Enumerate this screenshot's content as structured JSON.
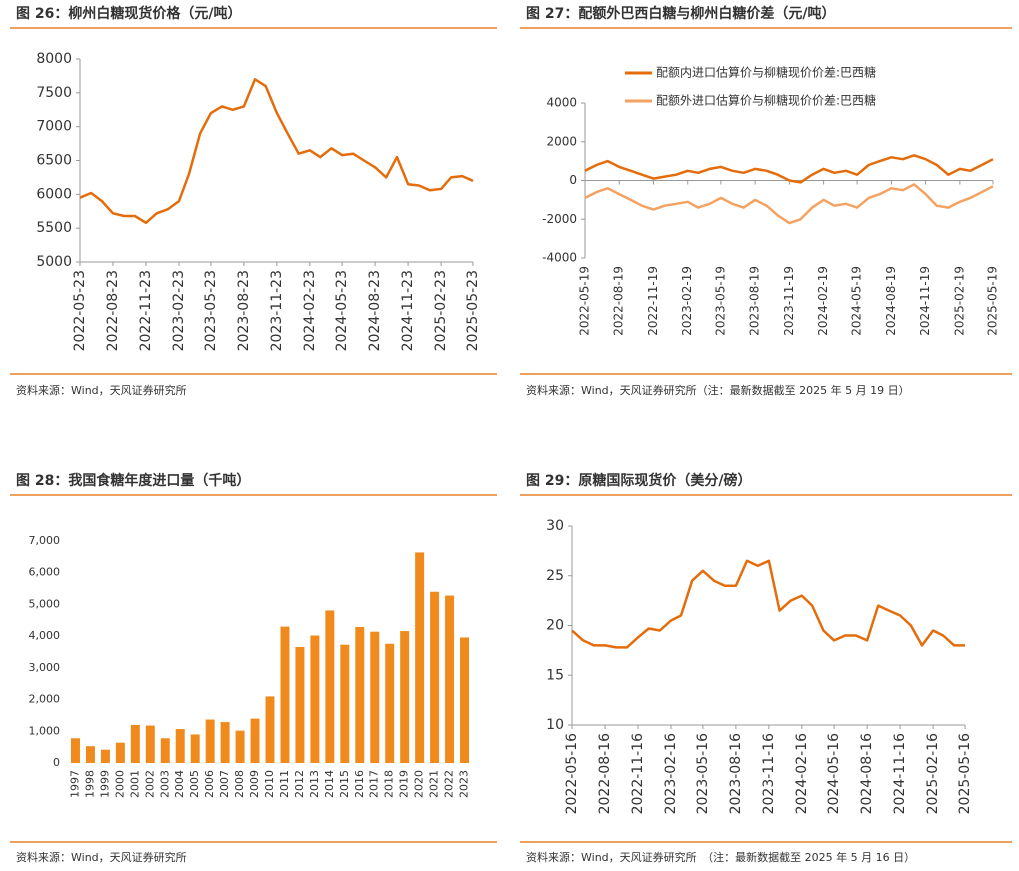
{
  "chart_data": [
    {
      "type": "line",
      "title": "图 26：柳州白糖现货价格（元/吨）",
      "note": "资料来源：Wind，天风证券研究所",
      "color": "#e46c0a",
      "x": [
        "2022-05-23",
        "2022-06-23",
        "2022-07-23",
        "2022-08-23",
        "2022-09-23",
        "2022-10-23",
        "2022-11-23",
        "2022-12-23",
        "2023-01-23",
        "2023-02-23",
        "2023-03-23",
        "2023-04-23",
        "2023-05-23",
        "2023-06-23",
        "2023-07-23",
        "2023-08-23",
        "2023-09-23",
        "2023-10-23",
        "2023-11-23",
        "2023-12-23",
        "2024-01-23",
        "2024-02-23",
        "2024-03-23",
        "2024-04-23",
        "2024-05-23",
        "2024-06-23",
        "2024-07-23",
        "2024-08-23",
        "2024-09-23",
        "2024-10-23",
        "2024-11-23",
        "2024-12-23",
        "2025-01-23",
        "2025-02-23",
        "2025-03-23",
        "2025-04-23",
        "2025-05-23"
      ],
      "values": [
        5950,
        6020,
        5900,
        5720,
        5680,
        5680,
        5580,
        5720,
        5780,
        5900,
        6300,
        6900,
        7200,
        7300,
        7250,
        7300,
        7700,
        7600,
        7200,
        6900,
        6600,
        6650,
        6550,
        6680,
        6580,
        6600,
        6500,
        6400,
        6250,
        6550,
        6150,
        6130,
        6060,
        6080,
        6250,
        6270,
        6200
      ],
      "xlim": [
        "2022-05-23",
        "2025-05-23"
      ],
      "xticks": [
        "2022-05-23",
        "2022-08-23",
        "2022-11-23",
        "2023-02-23",
        "2023-05-23",
        "2023-08-23",
        "2023-11-23",
        "2024-02-23",
        "2024-05-23",
        "2024-08-23",
        "2024-11-23",
        "2025-02-23",
        "2025-05-23"
      ],
      "ylim": [
        5000,
        8000
      ],
      "yticks": [
        5000,
        5500,
        6000,
        6500,
        7000,
        7500,
        8000
      ]
    },
    {
      "type": "line",
      "title": "图 27：配额外巴西白糖与柳州白糖价差（元/吨）",
      "note": "资料来源：Wind，天风证券研究所（注：最新数据截至 2025 年 5 月 19 日）",
      "x": [
        "2022-05-19",
        "2022-06-19",
        "2022-07-19",
        "2022-08-19",
        "2022-09-19",
        "2022-10-19",
        "2022-11-19",
        "2022-12-19",
        "2023-01-19",
        "2023-02-19",
        "2023-03-19",
        "2023-04-19",
        "2023-05-19",
        "2023-06-19",
        "2023-07-19",
        "2023-08-19",
        "2023-09-19",
        "2023-10-19",
        "2023-11-19",
        "2023-12-19",
        "2024-01-19",
        "2024-02-19",
        "2024-03-19",
        "2024-04-19",
        "2024-05-19",
        "2024-06-19",
        "2024-07-19",
        "2024-08-19",
        "2024-09-19",
        "2024-10-19",
        "2024-11-19",
        "2024-12-19",
        "2025-01-19",
        "2025-02-19",
        "2025-03-19",
        "2025-04-19",
        "2025-05-19"
      ],
      "series": [
        {
          "name": "配额内进口估算价与柳糖现价价差:巴西糖",
          "color": "#e46c0a",
          "values": [
            500,
            800,
            1000,
            700,
            500,
            300,
            100,
            200,
            300,
            500,
            400,
            600,
            700,
            500,
            400,
            600,
            500,
            300,
            0,
            -100,
            300,
            600,
            400,
            500,
            300,
            800,
            1000,
            1200,
            1100,
            1300,
            1100,
            800,
            300,
            600,
            500,
            800,
            1100
          ]
        },
        {
          "name": "配额外进口估算价与柳糖现价价差:巴西糖",
          "color": "#f4a261",
          "values": [
            -900,
            -600,
            -400,
            -700,
            -1000,
            -1300,
            -1500,
            -1300,
            -1200,
            -1100,
            -1400,
            -1200,
            -900,
            -1200,
            -1400,
            -1000,
            -1300,
            -1800,
            -2200,
            -2000,
            -1400,
            -1000,
            -1300,
            -1200,
            -1400,
            -900,
            -700,
            -400,
            -500,
            -200,
            -700,
            -1300,
            -1400,
            -1100,
            -900,
            -600,
            -300
          ]
        }
      ],
      "xlim": [
        "2022-05-19",
        "2025-05-19"
      ],
      "xticks": [
        "2022-05-19",
        "2022-08-19",
        "2022-11-19",
        "2023-02-19",
        "2023-05-19",
        "2023-08-19",
        "2023-11-19",
        "2024-02-19",
        "2024-05-19",
        "2024-08-19",
        "2024-11-19",
        "2025-02-19",
        "2025-05-19"
      ],
      "ylim": [
        -4000,
        4000
      ],
      "yticks": [
        -4000,
        -2000,
        0,
        2000,
        4000
      ]
    },
    {
      "type": "bar",
      "title": "图 28：我国食糖年度进口量（千吨）",
      "note": "资料来源：Wind，天风证券研究所",
      "color": "#f08a1c",
      "categories": [
        "1997",
        "1998",
        "1999",
        "2000",
        "2001",
        "2002",
        "2003",
        "2004",
        "2005",
        "2006",
        "2007",
        "2008",
        "2009",
        "2010",
        "2011",
        "2012",
        "2013",
        "2014",
        "2015",
        "2016",
        "2017",
        "2018",
        "2019",
        "2020",
        "2021",
        "2022",
        "2023"
      ],
      "values": [
        780,
        530,
        420,
        640,
        1200,
        1180,
        780,
        1070,
        900,
        1370,
        1290,
        1020,
        1400,
        2100,
        4300,
        3660,
        4020,
        4810,
        3730,
        4290,
        4140,
        3760,
        4160,
        6640,
        5400,
        5280,
        3960
      ],
      "ylim": [
        0,
        7000
      ],
      "yticks": [
        0,
        {
          "value": 1000,
          "label": "1,000"
        },
        {
          "value": 2000,
          "label": "2,000"
        },
        {
          "value": 3000,
          "label": "3,000"
        },
        {
          "value": 4000,
          "label": "4,000"
        },
        {
          "value": 5000,
          "label": "5,000"
        },
        {
          "value": 6000,
          "label": "6,000"
        },
        {
          "value": 7000,
          "label": "7,000"
        }
      ]
    },
    {
      "type": "line",
      "title": "图 29：原糖国际现货价（美分/磅）",
      "note": "资料来源：Wind，天风证券研究所　（注：最新数据截至 2025 年 5 月 16 日）",
      "color": "#e46c0a",
      "x": [
        "2022-05-16",
        "2022-06-16",
        "2022-07-16",
        "2022-08-16",
        "2022-09-16",
        "2022-10-16",
        "2022-11-16",
        "2022-12-16",
        "2023-01-16",
        "2023-02-16",
        "2023-03-16",
        "2023-04-16",
        "2023-05-16",
        "2023-06-16",
        "2023-07-16",
        "2023-08-16",
        "2023-09-16",
        "2023-10-16",
        "2023-11-16",
        "2023-12-16",
        "2024-01-16",
        "2024-02-16",
        "2024-03-16",
        "2024-04-16",
        "2024-05-16",
        "2024-06-16",
        "2024-07-16",
        "2024-08-16",
        "2024-09-16",
        "2024-10-16",
        "2024-11-16",
        "2024-12-16",
        "2025-01-16",
        "2025-02-16",
        "2025-03-16",
        "2025-04-16",
        "2025-05-16"
      ],
      "values": [
        19.5,
        18.5,
        18.0,
        18.0,
        17.8,
        17.8,
        18.8,
        19.7,
        19.5,
        20.5,
        21.0,
        24.5,
        25.5,
        24.5,
        24.0,
        24.0,
        26.5,
        26.0,
        26.5,
        21.5,
        22.5,
        23.0,
        22.0,
        19.5,
        18.5,
        19.0,
        19.0,
        18.5,
        22.0,
        21.5,
        21.0,
        20.0,
        18.0,
        19.5,
        19.0,
        18.0,
        18.0
      ],
      "xlim": [
        "2022-05-16",
        "2025-05-16"
      ],
      "xticks": [
        "2022-05-16",
        "2022-08-16",
        "2022-11-16",
        "2023-02-16",
        "2023-05-16",
        "2023-08-16",
        "2023-11-16",
        "2024-02-16",
        "2024-05-16",
        "2024-08-16",
        "2024-11-16",
        "2025-02-16",
        "2025-05-16"
      ],
      "ylim": [
        10,
        30
      ],
      "yticks": [
        10,
        15,
        20,
        25,
        30
      ]
    }
  ]
}
